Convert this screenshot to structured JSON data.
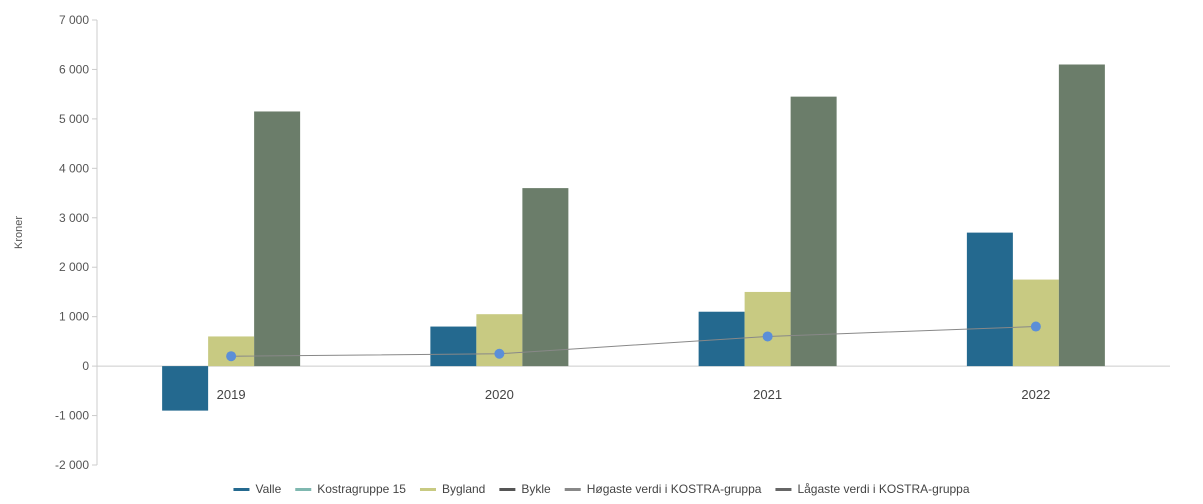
{
  "chart_data": {
    "type": "bar",
    "ylabel": "Kroner",
    "ylim": [
      -2000,
      7000
    ],
    "yticks": [
      -2000,
      -1000,
      0,
      1000,
      2000,
      3000,
      4000,
      5000,
      6000,
      7000
    ],
    "ytick_labels": [
      "-2 000",
      "-1 000",
      "0",
      "1 000",
      "2 000",
      "3 000",
      "4 000",
      "5 000",
      "6 000",
      "7 000"
    ],
    "categories": [
      "2019",
      "2020",
      "2021",
      "2022"
    ],
    "bar_series": [
      {
        "name": "Valle",
        "color": "#24698f",
        "values": [
          -900,
          800,
          1100,
          2700
        ]
      },
      {
        "name": "Bygland",
        "color": "#c8ca82",
        "values": [
          600,
          1050,
          1500,
          1750
        ]
      },
      {
        "name": "Bykle",
        "color": "#6b7d6a",
        "values": [
          5150,
          3600,
          5450,
          6100
        ]
      }
    ],
    "line_series": [
      {
        "name": "Kostragruppe 15",
        "color": "#888888",
        "marker_color": "#5b8fd8",
        "values": [
          200,
          250,
          600,
          800
        ]
      }
    ],
    "legend": [
      {
        "name": "Valle",
        "color": "#24698f"
      },
      {
        "name": "Kostragruppe 15",
        "color": "#7fb8b0"
      },
      {
        "name": "Bygland",
        "color": "#c8ca82"
      },
      {
        "name": "Bykle",
        "color": "#555555"
      },
      {
        "name": "Høgaste verdi i KOSTRA-gruppa",
        "color": "#888888"
      },
      {
        "name": "Lågaste verdi i KOSTRA-gruppa",
        "color": "#666666"
      }
    ],
    "legend_position": "bottom",
    "grid": false
  }
}
